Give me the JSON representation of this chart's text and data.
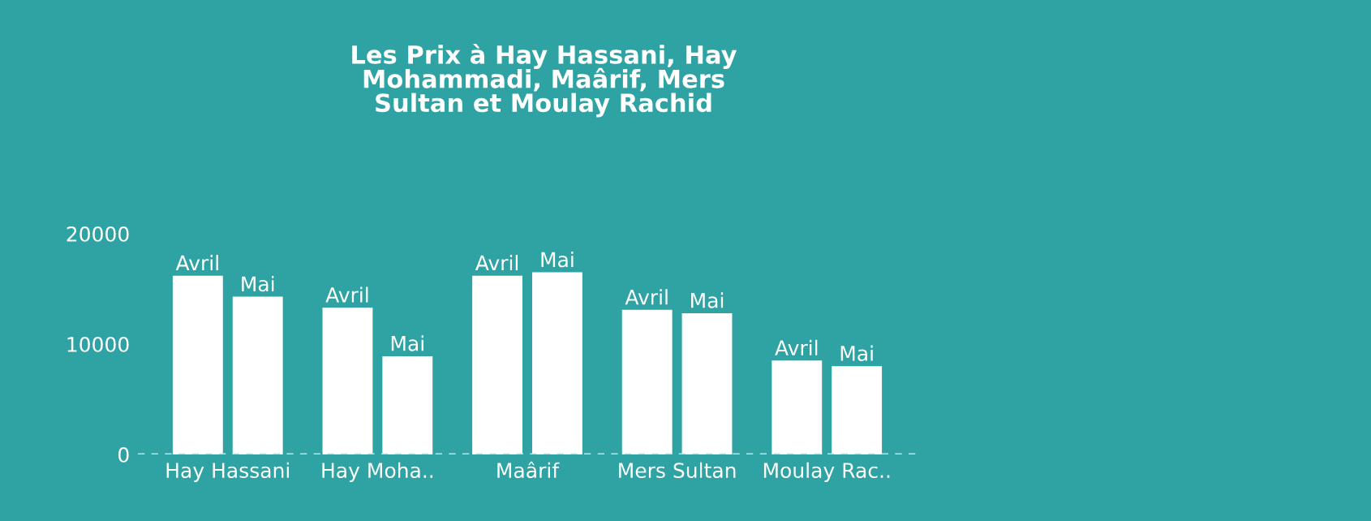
{
  "chart_data": {
    "type": "bar",
    "title": "Les Prix à Hay Hassani, Hay\nMohammadi, Maârif, Mers\nSultan et Moulay Rachid",
    "categories": [
      "Hay Hassani",
      "Hay Moha..",
      "Maârif",
      "Mers Sultan",
      "Moulay Rac.."
    ],
    "series": [
      {
        "name": "Avril",
        "color": "#ffffff",
        "values": [
          16100,
          13200,
          16100,
          13000,
          8400
        ]
      },
      {
        "name": "Mai",
        "color": "#ffffff",
        "values": [
          14200,
          8800,
          16400,
          12700,
          7900
        ]
      }
    ],
    "ylim": [
      0,
      20000
    ],
    "yticks": [
      0,
      10000,
      20000
    ],
    "grid": false,
    "legend": false,
    "ref_lines": [
      {
        "axis": "y",
        "value": 0,
        "color": "#bfe3e3",
        "line_style": "dashed"
      }
    ]
  }
}
